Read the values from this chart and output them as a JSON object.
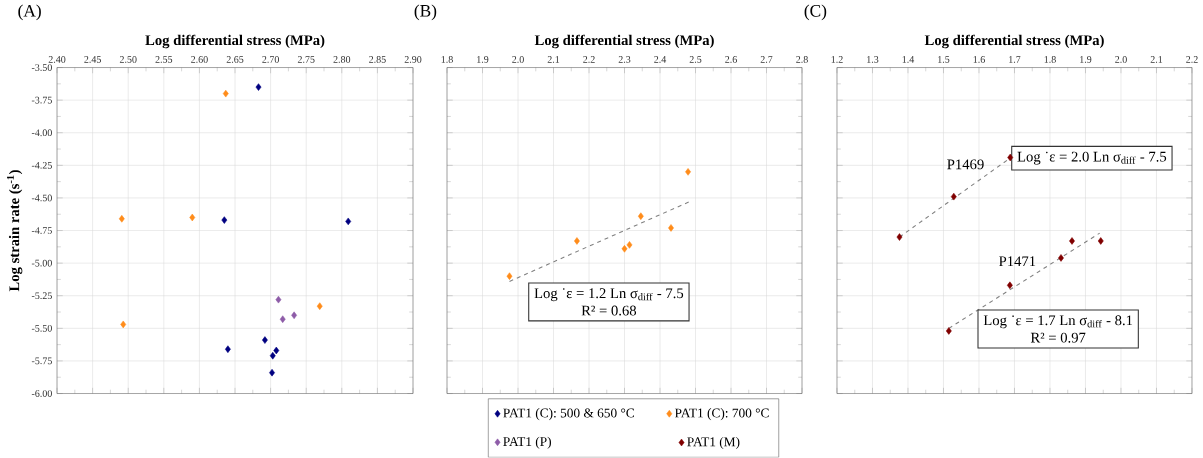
{
  "chart_data": [
    {
      "type": "scatter",
      "title": "(A)",
      "xlabel": "Log differential stress (MPa)",
      "ylabel": "Log strain rate (s$^{-1}$)",
      "marker": "diamond",
      "grid": true,
      "legend": "bottom",
      "xlim": [
        2.4,
        2.9
      ],
      "ylim": [
        -6,
        -3.5
      ],
      "xticks": [
        {
          "value": 2.4,
          "label": "2.40"
        },
        {
          "value": 2.45,
          "label": "2.45"
        },
        {
          "value": 2.5,
          "label": "2.50"
        },
        {
          "value": 2.55,
          "label": "2.55"
        },
        {
          "value": 2.6,
          "label": "2.60"
        },
        {
          "value": 2.65,
          "label": "2.65"
        },
        {
          "value": 2.7,
          "label": "2.70"
        },
        {
          "value": 2.75,
          "label": "2.75"
        },
        {
          "value": 2.8,
          "label": "2.80"
        },
        {
          "value": 2.85,
          "label": "2.85"
        },
        {
          "value": 2.9,
          "label": "2.90"
        }
      ],
      "yticks": [
        {
          "value": -3.5,
          "label": "-3.50"
        },
        {
          "value": -3.75,
          "label": "-3.75"
        },
        {
          "value": -4,
          "label": "-4.00"
        },
        {
          "value": -4.25,
          "label": "-4.25"
        },
        {
          "value": -4.5,
          "label": "-4.50"
        },
        {
          "value": -4.75,
          "label": "-4.75"
        },
        {
          "value": -5,
          "label": "-5.00"
        },
        {
          "value": -5.25,
          "label": "-5.25"
        },
        {
          "value": -5.5,
          "label": "-5.50"
        },
        {
          "value": -5.75,
          "label": "-5.75"
        },
        {
          "value": -6,
          "label": "-6.00"
        }
      ],
      "series": [
        {
          "name": "PAT1 (C): 500 & 650 °C",
          "color": "#000080",
          "x": [
            2.683,
            2.635,
            2.809,
            2.64,
            2.692,
            2.708,
            2.703,
            2.702
          ],
          "values": [
            -3.65,
            -4.67,
            -4.68,
            -5.66,
            -5.59,
            -5.67,
            -5.71,
            -5.84
          ]
        },
        {
          "name": "PAT1 (C): 700 °C",
          "color": "#ff8c1a",
          "x": [
            2.637,
            2.491,
            2.59,
            2.493,
            2.769
          ],
          "values": [
            -3.7,
            -4.66,
            -4.65,
            -5.47,
            -5.33
          ]
        },
        {
          "name": "PAT1 (P)",
          "color": "#8e5ca8",
          "x": [
            2.711,
            2.717,
            2.733
          ],
          "values": [
            -5.28,
            -5.43,
            -5.4
          ]
        }
      ]
    },
    {
      "type": "scatter",
      "title": "(B)",
      "xlabel": "Log differential stress (MPa)",
      "marker": "diamond",
      "grid": true,
      "tick_labels": "x",
      "xlim": [
        1.8,
        2.8
      ],
      "ylim": [
        -6,
        -3.5
      ],
      "xticks": [
        {
          "value": 1.8,
          "label": "1.8"
        },
        {
          "value": 1.9,
          "label": "1.9"
        },
        {
          "value": 2.0,
          "label": "2.0"
        },
        {
          "value": 2.1,
          "label": "2.1"
        },
        {
          "value": 2.2,
          "label": "2.2"
        },
        {
          "value": 2.3,
          "label": "2.3"
        },
        {
          "value": 2.4,
          "label": "2.4"
        },
        {
          "value": 2.5,
          "label": "2.5"
        },
        {
          "value": 2.6,
          "label": "2.6"
        },
        {
          "value": 2.7,
          "label": "2.7"
        },
        {
          "value": 2.8,
          "label": "2.8"
        }
      ],
      "yticks": [
        -3.5,
        -3.75,
        -4,
        -4.25,
        -4.5,
        -4.75,
        -5,
        -5.25,
        -5.5,
        -5.75,
        -6
      ],
      "annotations": [
        "Log ˙ε = 1.2 Ln σ$_{diff}$ - 7.5",
        "R² = 0.68"
      ],
      "series": [
        {
          "color": "#ff8c1a",
          "x": [
            1.976,
            2.166,
            2.3,
            2.314,
            2.346,
            2.431,
            2.479
          ],
          "values": [
            -5.1,
            -4.83,
            -4.89,
            -4.86,
            -4.64,
            -4.73,
            -4.3
          ]
        },
        {
          "type": "line",
          "color": "#808080",
          "line_style": "dashed",
          "marker": "none",
          "x": [
            1.976,
            2.482
          ],
          "values": [
            -5.14,
            -4.53
          ]
        }
      ]
    },
    {
      "type": "scatter",
      "title": "(C)",
      "xlabel": "Log differential stress (MPa)",
      "marker": "diamond",
      "grid": true,
      "tick_labels": "x",
      "legend": "bottom",
      "xlim": [
        1.2,
        2.2
      ],
      "ylim": [
        -6,
        -3.5
      ],
      "xticks": [
        {
          "value": 1.2,
          "label": "1.2"
        },
        {
          "value": 1.3,
          "label": "1.3"
        },
        {
          "value": 1.4,
          "label": "1.4"
        },
        {
          "value": 1.5,
          "label": "1.5"
        },
        {
          "value": 1.6,
          "label": "1.6"
        },
        {
          "value": 1.7,
          "label": "1.7"
        },
        {
          "value": 1.8,
          "label": "1.8"
        },
        {
          "value": 1.9,
          "label": "1.9"
        },
        {
          "value": 2.0,
          "label": "2.0"
        },
        {
          "value": 2.1,
          "label": "2.1"
        },
        {
          "value": 2.2,
          "label": "2.2"
        }
      ],
      "yticks": [
        -3.5,
        -3.75,
        -4,
        -4.25,
        -4.5,
        -4.75,
        -5,
        -5.25,
        -5.5,
        -5.75,
        -6
      ],
      "annotations": [
        "P1469",
        "Log ˙ε = 2.0 Ln σ$_{diff}$ - 7.5",
        "P1471",
        "Log ˙ε = 1.7 Ln σ$_{diff}$ - 8.1",
        "R² = 0.97"
      ],
      "series": [
        {
          "name": "PAT1 (M)",
          "color": "#800000",
          "x": [
            1.376,
            1.529,
            1.688,
            1.515,
            1.687,
            1.831,
            1.862,
            1.943
          ],
          "values": [
            -4.8,
            -4.49,
            -4.19,
            -5.52,
            -5.17,
            -4.96,
            -4.83,
            -4.83
          ]
        },
        {
          "type": "line",
          "color": "#808080",
          "line_style": "dashed",
          "marker": "none",
          "x": [
            1.376,
            1.69
          ],
          "values": [
            -4.8,
            -4.19
          ]
        },
        {
          "type": "line",
          "color": "#808080",
          "line_style": "dashed",
          "marker": "none",
          "x": [
            1.515,
            1.94
          ],
          "values": [
            -5.5,
            -4.77
          ]
        }
      ]
    }
  ]
}
